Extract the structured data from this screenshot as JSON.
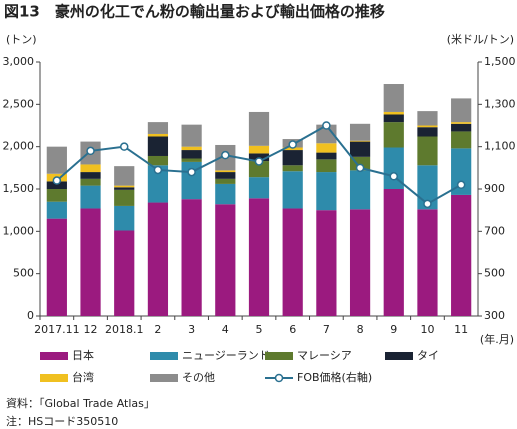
{
  "chart_data": {
    "type": "bar",
    "stacked": true,
    "title": "図13　豪州の化工でん粉の輸出量および輸出価格の推移",
    "y_label": "(トン)",
    "y2_label": "(米ドル/トン)",
    "x_label": "(年.月)",
    "categories": [
      "2017.11",
      "12",
      "2018.1",
      "2",
      "3",
      "4",
      "5",
      "6",
      "7",
      "8",
      "9",
      "10",
      "11"
    ],
    "series": [
      {
        "name": "日本",
        "color": "#9b1a7f",
        "values": [
          1150,
          1270,
          1010,
          1340,
          1380,
          1320,
          1390,
          1270,
          1250,
          1260,
          1500,
          1260,
          1430
        ]
      },
      {
        "name": "ニュージーランド",
        "color": "#2e8bab",
        "values": [
          200,
          270,
          290,
          440,
          440,
          240,
          250,
          440,
          450,
          460,
          490,
          520,
          550
        ]
      },
      {
        "name": "マレーシア",
        "color": "#5e7a2e",
        "values": [
          150,
          80,
          190,
          110,
          40,
          60,
          190,
          70,
          150,
          160,
          300,
          340,
          200
        ]
      },
      {
        "name": "タイ",
        "color": "#1a2333",
        "values": [
          90,
          80,
          30,
          230,
          100,
          80,
          90,
          180,
          80,
          180,
          90,
          110,
          90
        ]
      },
      {
        "name": "台湾",
        "color": "#f0c020",
        "values": [
          90,
          90,
          20,
          30,
          40,
          20,
          90,
          30,
          110,
          10,
          30,
          20,
          20
        ]
      },
      {
        "name": "その他",
        "color": "#8c8c8c",
        "values": [
          320,
          270,
          230,
          140,
          260,
          300,
          400,
          100,
          220,
          200,
          330,
          170,
          280
        ]
      },
      {
        "name": "FOB価格(右軸)",
        "type": "line",
        "axis": "y2",
        "color": "#2a7090",
        "values": [
          940,
          1080,
          1100,
          990,
          980,
          1060,
          1030,
          1110,
          1200,
          1000,
          960,
          830,
          920
        ]
      }
    ],
    "ylim": [
      0,
      3000
    ],
    "yticks": [
      0,
      500,
      {
        "value": 1000,
        "label": "1,000"
      },
      {
        "value": 1500,
        "label": "1,500"
      },
      {
        "value": 2000,
        "label": "2,000"
      },
      {
        "value": 2500,
        "label": "2,500"
      },
      {
        "value": 3000,
        "label": "3,000"
      }
    ],
    "y2lim": [
      300,
      1500
    ],
    "y2ticks": [
      300,
      500,
      700,
      900,
      {
        "value": 1100,
        "label": "1,100"
      },
      {
        "value": 1300,
        "label": "1,300"
      },
      {
        "value": 1500,
        "label": "1,500"
      }
    ],
    "grid": false,
    "notes": [
      "資料：「Global Trade Atlas」",
      "注：HSコード350510"
    ]
  }
}
